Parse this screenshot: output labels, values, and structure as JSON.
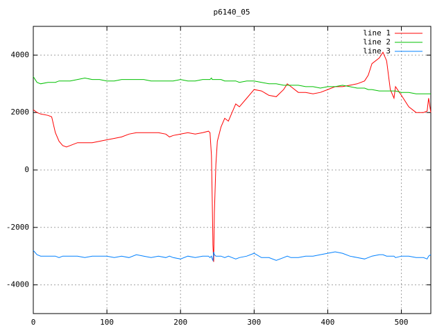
{
  "chart_data": {
    "type": "line",
    "title": "p6140_05",
    "x": [
      0,
      5,
      10,
      20,
      25,
      30,
      35,
      40,
      45,
      50,
      60,
      70,
      80,
      90,
      100,
      110,
      120,
      130,
      140,
      150,
      160,
      170,
      180,
      185,
      190,
      200,
      210,
      220,
      230,
      238,
      240,
      242,
      243,
      244,
      245,
      246,
      248,
      250,
      255,
      260,
      265,
      270,
      275,
      280,
      290,
      300,
      310,
      320,
      330,
      340,
      345,
      350,
      360,
      370,
      380,
      390,
      400,
      410,
      420,
      430,
      440,
      450,
      455,
      460,
      470,
      475,
      480,
      485,
      490,
      492,
      500,
      510,
      520,
      530,
      535,
      537,
      540
    ],
    "series": [
      {
        "name": "line 1",
        "color": "#ff0000",
        "values": [
          2100,
          2000,
          1950,
          1900,
          1850,
          1300,
          1000,
          850,
          800,
          850,
          950,
          950,
          950,
          1000,
          1050,
          1100,
          1150,
          1250,
          1300,
          1300,
          1300,
          1300,
          1250,
          1150,
          1200,
          1250,
          1300,
          1250,
          1300,
          1350,
          1300,
          500,
          -1000,
          -2600,
          -3200,
          -1500,
          200,
          1000,
          1500,
          1800,
          1700,
          2000,
          2300,
          2200,
          2500,
          2800,
          2750,
          2600,
          2550,
          2800,
          3000,
          2900,
          2700,
          2700,
          2650,
          2700,
          2800,
          2900,
          2900,
          2950,
          3000,
          3100,
          3300,
          3700,
          3900,
          4100,
          3800,
          2800,
          2500,
          2900,
          2600,
          2200,
          2000,
          2000,
          2050,
          2500,
          2000
        ]
      },
      {
        "name": "line 2",
        "color": "#00c000",
        "values": [
          3250,
          3050,
          3000,
          3050,
          3050,
          3050,
          3100,
          3100,
          3100,
          3100,
          3150,
          3200,
          3150,
          3150,
          3100,
          3100,
          3150,
          3150,
          3150,
          3150,
          3100,
          3100,
          3100,
          3100,
          3100,
          3150,
          3100,
          3100,
          3150,
          3150,
          3150,
          3200,
          3150,
          3150,
          3150,
          3150,
          3150,
          3150,
          3150,
          3100,
          3100,
          3100,
          3100,
          3050,
          3100,
          3100,
          3050,
          3000,
          3000,
          2950,
          2950,
          2950,
          2950,
          2900,
          2900,
          2850,
          2900,
          2900,
          2950,
          2900,
          2850,
          2850,
          2800,
          2800,
          2750,
          2750,
          2750,
          2750,
          2750,
          2750,
          2700,
          2700,
          2650,
          2650,
          2650,
          2650,
          2650
        ]
      },
      {
        "name": "line 3",
        "color": "#0080ff",
        "values": [
          -2800,
          -2950,
          -3000,
          -3000,
          -3000,
          -3000,
          -3050,
          -3000,
          -3000,
          -3000,
          -3000,
          -3050,
          -3000,
          -3000,
          -3000,
          -3050,
          -3000,
          -3050,
          -2950,
          -3000,
          -3050,
          -3000,
          -3050,
          -3000,
          -3050,
          -3100,
          -3000,
          -3050,
          -3000,
          -3000,
          -3050,
          -3000,
          -3100,
          -3150,
          -2850,
          -2950,
          -3000,
          -3000,
          -3000,
          -3050,
          -3000,
          -3050,
          -3100,
          -3050,
          -3000,
          -2900,
          -3050,
          -3050,
          -3150,
          -3050,
          -3000,
          -3050,
          -3050,
          -3000,
          -3000,
          -2950,
          -2900,
          -2850,
          -2900,
          -3000,
          -3050,
          -3100,
          -3050,
          -3000,
          -2950,
          -2950,
          -3000,
          -3000,
          -3000,
          -3050,
          -3000,
          -3000,
          -3050,
          -3050,
          -3100,
          -3000,
          -2950
        ]
      }
    ],
    "xlim": [
      0,
      540
    ],
    "ylim": [
      -5000,
      5000
    ],
    "xticks": [
      0,
      100,
      200,
      300,
      400,
      500
    ],
    "yticks": [
      -4000,
      -2000,
      0,
      2000,
      4000
    ],
    "grid": true,
    "legend": "top-right"
  }
}
